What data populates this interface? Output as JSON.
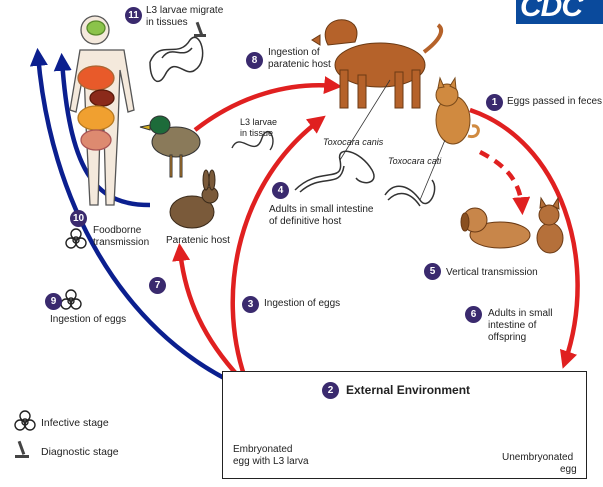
{
  "logo": {
    "text": "CDC"
  },
  "steps": [
    {
      "num": "1",
      "label": "Eggs passed in feces"
    },
    {
      "num": "2",
      "label": "External Environment"
    },
    {
      "num": "3",
      "label": "Ingestion of eggs"
    },
    {
      "num": "4",
      "label_lines": [
        "Adults in small intestine",
        "of definitive host"
      ]
    },
    {
      "num": "5",
      "label": "Vertical transmission"
    },
    {
      "num": "6",
      "label_lines": [
        "Adults in small",
        "intestine of",
        "offspring"
      ]
    },
    {
      "num": "7",
      "label": ""
    },
    {
      "num": "8",
      "label_lines": [
        "Ingestion of",
        "paratenic host"
      ]
    },
    {
      "num": "9",
      "label": "Ingestion of eggs"
    },
    {
      "num": "10",
      "label_lines": [
        "Foodborne",
        "transmission"
      ]
    },
    {
      "num": "11",
      "label_lines": [
        "L3 larvae migrate",
        "in tissues"
      ]
    }
  ],
  "labels": {
    "toxocara_canis": "Toxocara canis",
    "toxocara_cati": "Toxocara cati",
    "l3_in_tissue": [
      "L3 larvae",
      "in tissue"
    ],
    "paratenic_host": "Paratenic host",
    "embryonated_egg": [
      "Embryonated",
      "egg with L3 larva"
    ],
    "unembryonated_egg": [
      "Unembryonated",
      "egg"
    ]
  },
  "legend": {
    "infective": "Infective stage",
    "diagnostic": "Diagnostic stage"
  },
  "colors": {
    "red_arrow": "#e02020",
    "blue_arrow": "#0b1f8f",
    "step_badge": "#3a2a6e",
    "logo_blue": "#0a4a9c"
  }
}
